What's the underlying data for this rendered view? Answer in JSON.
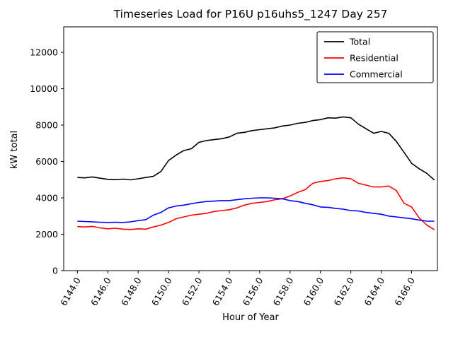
{
  "figure": {
    "background": "#ffffff"
  },
  "chart_data": {
    "type": "line",
    "title": "Timeseries Load for P16U p16uhs5_1247  Day 257",
    "xlabel": "Hour of Year",
    "ylabel": "kW total",
    "xlim": [
      6143.1,
      6167.7
    ],
    "ylim": [
      0,
      13400
    ],
    "grid": false,
    "yticks": [
      0,
      2000,
      4000,
      6000,
      8000,
      10000,
      12000
    ],
    "xticks": [
      {
        "v": 6144,
        "label": "6144.0"
      },
      {
        "v": 6146,
        "label": "6146.0"
      },
      {
        "v": 6148,
        "label": "6148.0"
      },
      {
        "v": 6150,
        "label": "6150.0"
      },
      {
        "v": 6152,
        "label": "6152.0"
      },
      {
        "v": 6154,
        "label": "6154.0"
      },
      {
        "v": 6156,
        "label": "6156.0"
      },
      {
        "v": 6158,
        "label": "6158.0"
      },
      {
        "v": 6160,
        "label": "6160.0"
      },
      {
        "v": 6162,
        "label": "6162.0"
      },
      {
        "v": 6164,
        "label": "6164.0"
      },
      {
        "v": 6166,
        "label": "6166.0"
      }
    ],
    "legend": {
      "position": "upper right",
      "entries": [
        "Total",
        "Residential",
        "Commercial"
      ]
    },
    "x": [
      6144.0,
      6144.5,
      6145.0,
      6145.5,
      6146.0,
      6146.5,
      6147.0,
      6147.5,
      6148.0,
      6148.5,
      6149.0,
      6149.5,
      6150.0,
      6150.5,
      6151.0,
      6151.5,
      6152.0,
      6152.5,
      6153.0,
      6153.5,
      6154.0,
      6154.5,
      6155.0,
      6155.5,
      6156.0,
      6156.5,
      6157.0,
      6157.5,
      6158.0,
      6158.5,
      6159.0,
      6159.5,
      6160.0,
      6160.5,
      6161.0,
      6161.5,
      6162.0,
      6162.5,
      6163.0,
      6163.5,
      6164.0,
      6164.5,
      6165.0,
      6165.5,
      6166.0,
      6166.5,
      6167.0,
      6167.5
    ],
    "series": [
      {
        "name": "Total",
        "color": "#000000",
        "values": [
          5120,
          5100,
          5150,
          5080,
          5020,
          5000,
          5030,
          4990,
          5050,
          5120,
          5180,
          5450,
          6050,
          6350,
          6600,
          6700,
          7050,
          7150,
          7200,
          7250,
          7350,
          7550,
          7600,
          7700,
          7750,
          7800,
          7850,
          7950,
          8000,
          8100,
          8150,
          8250,
          8300,
          8400,
          8380,
          8450,
          8400,
          8050,
          7800,
          7550,
          7650,
          7550,
          7100,
          6500,
          5900,
          5600,
          5350,
          4980
        ]
      },
      {
        "name": "Residential",
        "color": "#ff0000",
        "values": [
          2420,
          2400,
          2430,
          2350,
          2300,
          2330,
          2280,
          2260,
          2300,
          2280,
          2400,
          2500,
          2650,
          2850,
          2950,
          3050,
          3100,
          3150,
          3250,
          3300,
          3350,
          3450,
          3600,
          3700,
          3750,
          3800,
          3900,
          3950,
          4100,
          4300,
          4450,
          4800,
          4900,
          4950,
          5050,
          5100,
          5050,
          4800,
          4700,
          4600,
          4600,
          4650,
          4400,
          3700,
          3500,
          2900,
          2500,
          2250
        ]
      },
      {
        "name": "Commercial",
        "color": "#0000ff",
        "values": [
          2720,
          2700,
          2680,
          2660,
          2650,
          2660,
          2650,
          2680,
          2750,
          2800,
          3050,
          3200,
          3450,
          3550,
          3600,
          3680,
          3750,
          3800,
          3820,
          3850,
          3850,
          3900,
          3950,
          3980,
          4000,
          4000,
          3980,
          3950,
          3850,
          3800,
          3700,
          3620,
          3500,
          3480,
          3420,
          3380,
          3300,
          3280,
          3200,
          3150,
          3100,
          3000,
          2950,
          2900,
          2850,
          2780,
          2720,
          2720
        ]
      }
    ]
  }
}
